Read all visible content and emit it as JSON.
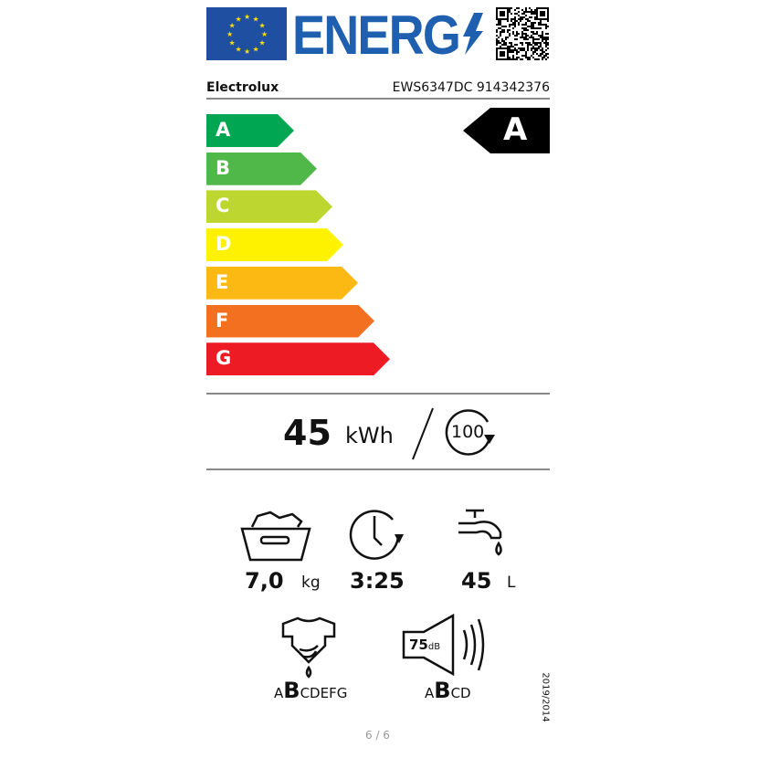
{
  "header": {
    "logo_text": "ENERG",
    "brand": "Electrolux",
    "model": "EWS6347DC 914342376"
  },
  "scale": {
    "classes": [
      {
        "letter": "A",
        "color": "#00a651"
      },
      {
        "letter": "B",
        "color": "#50b848"
      },
      {
        "letter": "C",
        "color": "#bed630"
      },
      {
        "letter": "D",
        "color": "#fff200"
      },
      {
        "letter": "E",
        "color": "#fdb913"
      },
      {
        "letter": "F",
        "color": "#f37021"
      },
      {
        "letter": "G",
        "color": "#ed1c24"
      }
    ],
    "rating": "A"
  },
  "energy": {
    "value": "45",
    "unit": "kWh",
    "cycles": "100"
  },
  "specs": {
    "capacity": "7,0",
    "capacity_unit": "kg",
    "duration": "3:25",
    "water": "45",
    "water_unit": "L"
  },
  "spin": {
    "before": "A",
    "current": "B",
    "after": "CDEFG"
  },
  "noise": {
    "value": "75",
    "unit": "dB",
    "before": "A",
    "current": "B",
    "after": "CD"
  },
  "regulation": "2019/2014",
  "page": "6 / 6"
}
